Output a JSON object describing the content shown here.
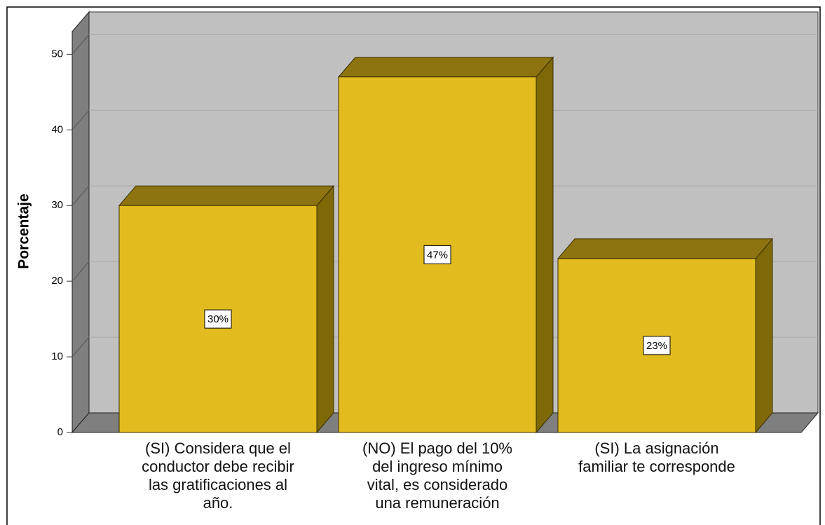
{
  "chart_data": {
    "type": "bar3d",
    "ylabel": "Porcentaje",
    "categories": [
      "(SI) Considera que el\nconductor debe recibir\nlas gratificaciones al\naño.",
      "(NO) El pago del 10%\ndel ingreso mínimo\nvital, es considerado\nuna remuneración",
      "(SI) La asignación\nfamiliar te corresponde"
    ],
    "values": [
      30,
      47,
      23
    ],
    "value_labels": [
      "30%",
      "47%",
      "23%"
    ],
    "color": "#e2bb1e",
    "ylim": [
      0,
      53
    ],
    "yticks": [
      0,
      10,
      20,
      30,
      40,
      50
    ],
    "grid": true
  }
}
